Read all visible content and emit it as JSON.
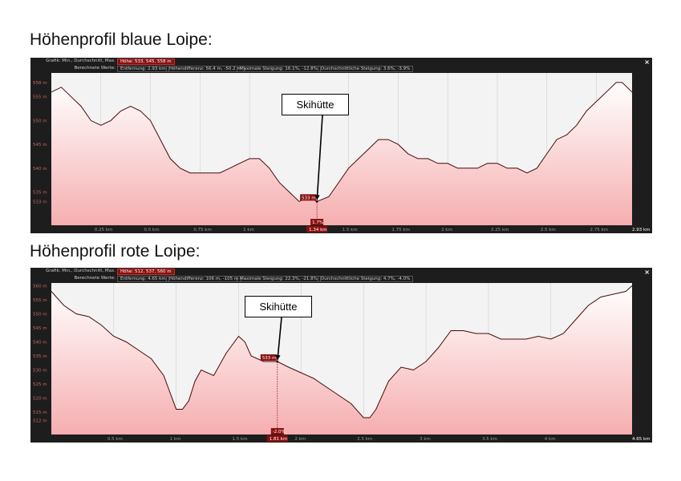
{
  "page": {
    "headings": [
      "Höhenprofil blaue Loipe:",
      "Höhenprofil rote Loipe:"
    ]
  },
  "panels": [
    {
      "header": {
        "grafik_label": "Grafik: Min., Durchschnitt, Max.",
        "hoehe": "Höhe: 533, 545, 558 m",
        "berechnet_label": "Berechnete Werte:",
        "entfernung": "Entfernung: 2.93 km",
        "hoehendifferenz": "Höhendifferenz: 56.4 m, -50.2 m",
        "max_steigung": "Maximale Steigung: 16.1%, -12.8%",
        "avg_steigung": "Durchschnittliche Steigung: 3.6%, -3.9%"
      },
      "close_label": "×",
      "annotation": "Skihütte",
      "cursor": {
        "x": 1.34,
        "y": 533,
        "x_label": "1.34 km",
        "y_label": "533 m",
        "slope_label": "1.7%"
      },
      "chart_data": {
        "type": "area",
        "ylim": [
          528,
          560
        ],
        "xlim": [
          0,
          2.93
        ],
        "yticks": [
          558,
          555,
          550,
          545,
          540,
          535,
          533
        ],
        "ytick_labels": [
          "558 m",
          "555 m",
          "550 m",
          "545 m",
          "540 m",
          "535 m",
          "533 m"
        ],
        "xticks": [
          0.25,
          0.5,
          0.75,
          1,
          1.5,
          1.75,
          2,
          2.25,
          2.5,
          2.75,
          2.93
        ],
        "xtick_labels": [
          "0.25 km",
          "0.5 km",
          "0.75 km",
          "1 km",
          "1.5 km",
          "1.75 km",
          "2 km",
          "2.25 km",
          "2.5 km",
          "2.75 km",
          "2.93 km"
        ],
        "x": [
          0,
          0.05,
          0.1,
          0.15,
          0.2,
          0.25,
          0.3,
          0.35,
          0.4,
          0.45,
          0.5,
          0.55,
          0.6,
          0.65,
          0.7,
          0.75,
          0.8,
          0.85,
          0.9,
          0.95,
          1.0,
          1.05,
          1.1,
          1.15,
          1.2,
          1.25,
          1.3,
          1.34,
          1.4,
          1.45,
          1.5,
          1.55,
          1.6,
          1.65,
          1.7,
          1.75,
          1.8,
          1.85,
          1.9,
          1.95,
          2.0,
          2.05,
          2.1,
          2.15,
          2.2,
          2.25,
          2.3,
          2.35,
          2.4,
          2.45,
          2.5,
          2.55,
          2.6,
          2.65,
          2.7,
          2.75,
          2.8,
          2.85,
          2.88,
          2.93
        ],
        "y": [
          556,
          557,
          555,
          553,
          550,
          549,
          550,
          552,
          553,
          552,
          550,
          546,
          542,
          540,
          539,
          539,
          539,
          539,
          540,
          541,
          542,
          542,
          540,
          537,
          535,
          533,
          534,
          533,
          534,
          537,
          540,
          542,
          544,
          546,
          546,
          545,
          543,
          542,
          542,
          541,
          541,
          540,
          540,
          540,
          541,
          541,
          540,
          540,
          539,
          540,
          543,
          546,
          547,
          549,
          552,
          554,
          556,
          558,
          558,
          556
        ]
      }
    },
    {
      "header": {
        "grafik_label": "Grafik: Min., Durchschnitt, Max.",
        "hoehe": "Höhe: 512, 537, 560 m",
        "berechnet_label": "Berechnete Werte:",
        "entfernung": "Entfernung: 4.65 km",
        "hoehendifferenz": "Höhendifferenz: 106 m, -105 m",
        "max_steigung": "Maximale Steigung: 22.3%, -21.8%",
        "avg_steigung": "Durchschnittliche Steigung: 4.7%, -4.0%"
      },
      "close_label": "×",
      "annotation": "Skihütte",
      "cursor": {
        "x": 1.81,
        "y": 533,
        "x_label": "1.81 km",
        "y_label": "533 m",
        "slope_label": "-2.0%"
      },
      "chart_data": {
        "type": "area",
        "ylim": [
          507,
          561
        ],
        "xlim": [
          0,
          4.65
        ],
        "yticks": [
          560,
          555,
          550,
          545,
          540,
          535,
          530,
          525,
          520,
          515,
          512
        ],
        "ytick_labels": [
          "560 m",
          "555 m",
          "550 m",
          "545 m",
          "540 m",
          "535 m",
          "530 m",
          "525 m",
          "520 m",
          "515 m",
          "512 m"
        ],
        "xticks": [
          0.5,
          1,
          1.5,
          2,
          2.5,
          3,
          3.5,
          4,
          4.65
        ],
        "xtick_labels": [
          "0.5 km",
          "1 km",
          "1.5 km",
          "2 km",
          "2.5 km",
          "3 km",
          "3.5 km",
          "4 km",
          "4.65 km"
        ],
        "x": [
          0,
          0.1,
          0.2,
          0.3,
          0.4,
          0.5,
          0.6,
          0.7,
          0.8,
          0.9,
          1.0,
          1.05,
          1.1,
          1.15,
          1.2,
          1.3,
          1.4,
          1.5,
          1.55,
          1.6,
          1.7,
          1.81,
          1.9,
          2.0,
          2.1,
          2.2,
          2.3,
          2.4,
          2.5,
          2.55,
          2.6,
          2.7,
          2.8,
          2.9,
          3.0,
          3.1,
          3.2,
          3.3,
          3.4,
          3.5,
          3.6,
          3.7,
          3.8,
          3.9,
          4.0,
          4.1,
          4.2,
          4.3,
          4.4,
          4.5,
          4.6,
          4.65
        ],
        "y": [
          558,
          553,
          550,
          549,
          546,
          542,
          540,
          537,
          534,
          528,
          516,
          516,
          519,
          526,
          530,
          528,
          536,
          542,
          540,
          535,
          533,
          533,
          531,
          529,
          527,
          524,
          521,
          518,
          513,
          513,
          516,
          526,
          531,
          530,
          533,
          538,
          544,
          544,
          543,
          543,
          541,
          541,
          541,
          542,
          541,
          543,
          548,
          553,
          556,
          557,
          558,
          560
        ]
      }
    }
  ]
}
